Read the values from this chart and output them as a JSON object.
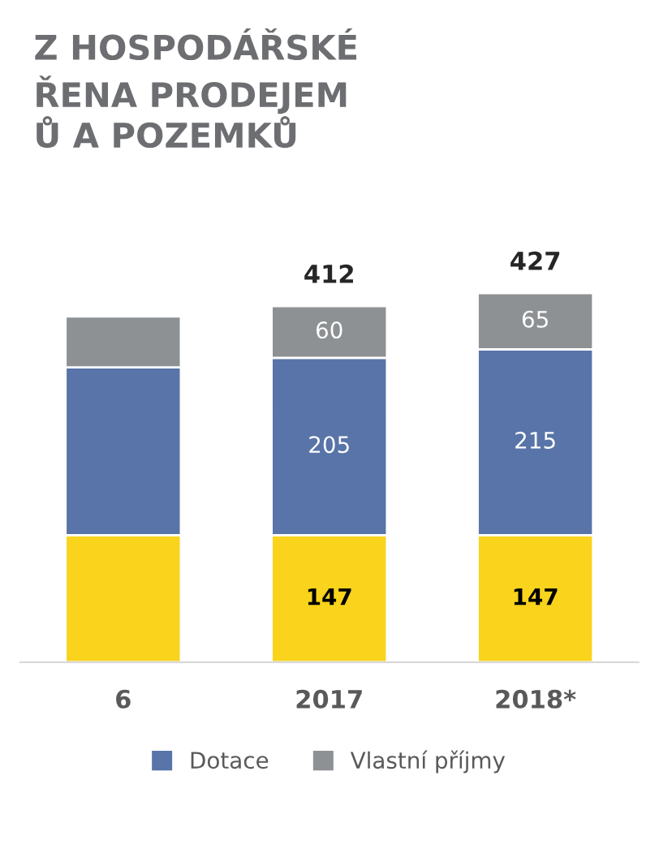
{
  "chart_data": {
    "type": "bar",
    "stacked": true,
    "title": "Z HOSPODÁŘSKÉ\nŘENA PRODEJEM\nŮ A POZEMKŮ",
    "categories": [
      "6",
      "2017",
      "2018*"
    ],
    "series": [
      {
        "color": "#f9d31c",
        "values": [
          147,
          147,
          147
        ],
        "value_labels": [
          null,
          "147",
          "147"
        ]
      },
      {
        "name": "Dotace",
        "color": "#5874a8",
        "values": [
          194,
          205,
          215
        ],
        "value_labels": [
          null,
          "205",
          "215"
        ]
      },
      {
        "name": "Vlastní příjmy",
        "color": "#8e9194",
        "values": [
          59,
          60,
          65
        ],
        "value_labels": [
          null,
          "60",
          "65"
        ]
      }
    ],
    "totals": [
      null,
      "412",
      "427"
    ],
    "legend": "bottom",
    "grid": false
  }
}
